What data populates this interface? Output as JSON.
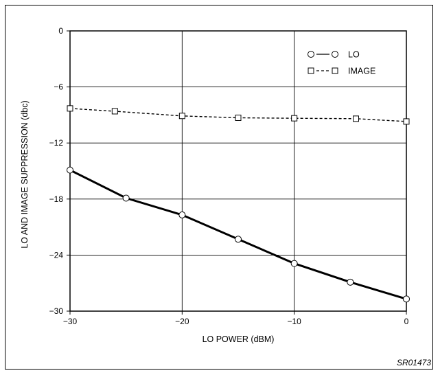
{
  "figure_id": "SR01473",
  "chart_data": {
    "type": "line",
    "xlabel": "LO POWER (dBM)",
    "ylabel": "LO AND IMAGE SUPPRESSION (dbc)",
    "xlim": [
      -30,
      0
    ],
    "ylim": [
      -30,
      0
    ],
    "xticks": [
      -30,
      -20,
      -10,
      0
    ],
    "xtick_labels": [
      "−30",
      "−20",
      "−10",
      "0"
    ],
    "yticks": [
      0,
      -6,
      -12,
      -18,
      -24,
      -30
    ],
    "ytick_labels": [
      "0",
      "−6",
      "−12",
      "−18",
      "−24",
      "−30"
    ],
    "grid": true,
    "legend_position": "top-right",
    "series": [
      {
        "name": "LO",
        "marker": "circle",
        "line_style": "solid",
        "color": "#000000",
        "x": [
          -30,
          -25,
          -20,
          -15,
          -10,
          -5,
          0
        ],
        "y": [
          -14.9,
          -17.9,
          -19.7,
          -22.3,
          -24.9,
          -26.9,
          -28.7
        ]
      },
      {
        "name": "IMAGE",
        "marker": "square",
        "line_style": "dashed",
        "color": "#000000",
        "x": [
          -30,
          -26,
          -20,
          -15,
          -10,
          -4.5,
          0
        ],
        "y": [
          -8.3,
          -8.6,
          -9.1,
          -9.3,
          -9.35,
          -9.4,
          -9.7
        ]
      }
    ],
    "legend": [
      {
        "label": "LO",
        "symbol": "○—○"
      },
      {
        "label": "IMAGE",
        "symbol": "□- -□"
      }
    ]
  }
}
